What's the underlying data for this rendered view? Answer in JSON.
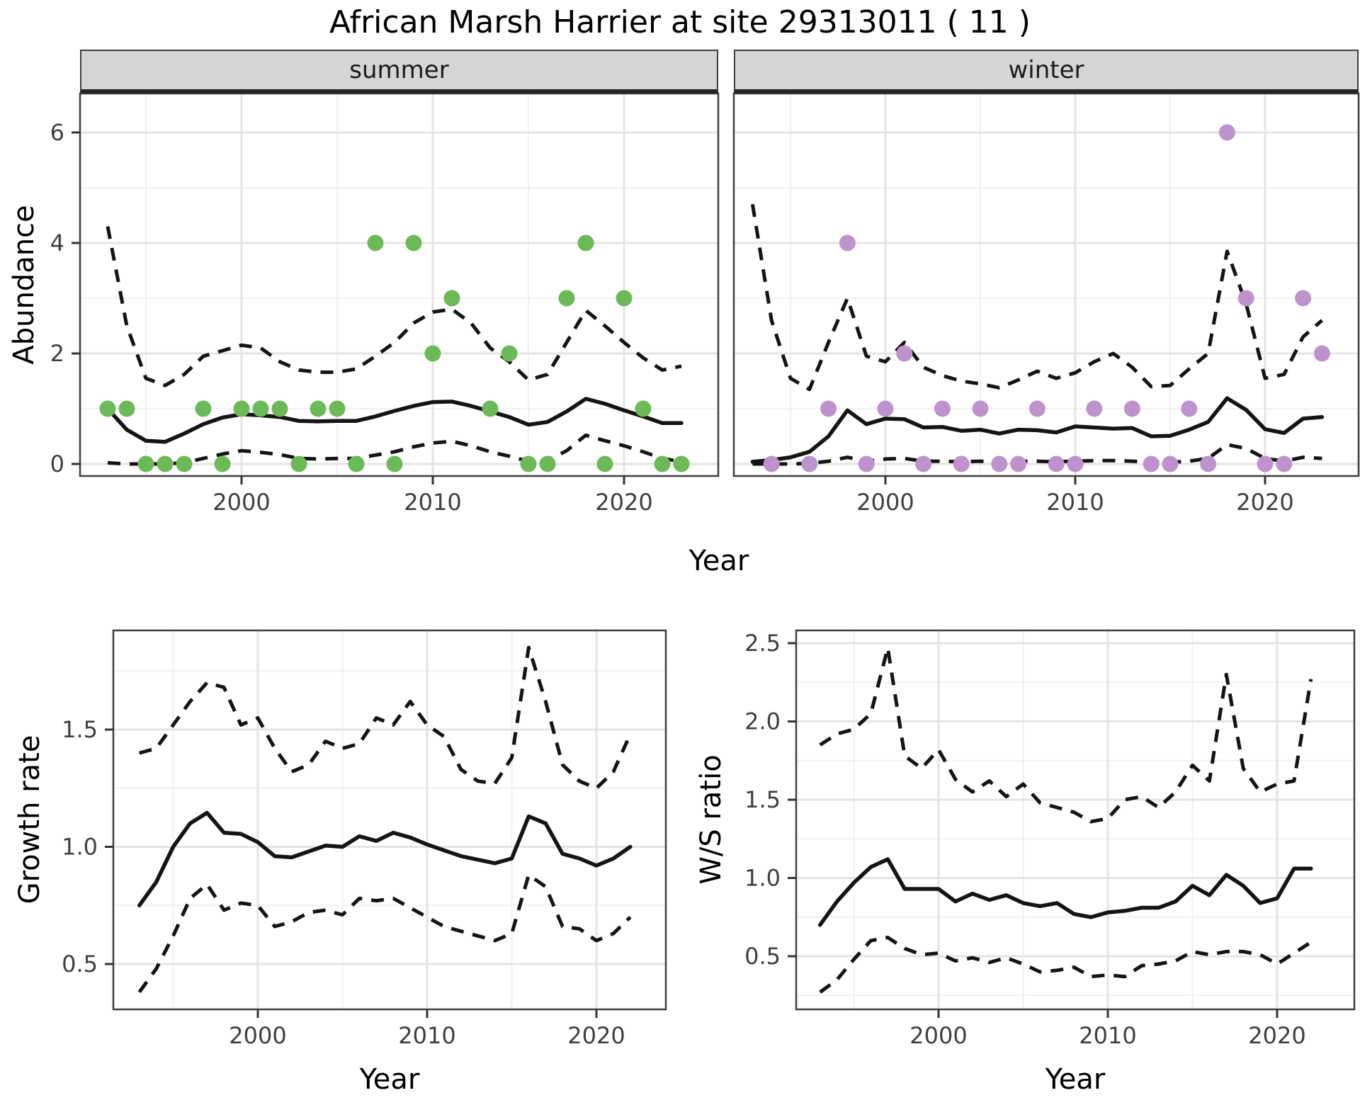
{
  "page": {
    "title": "African Marsh Harrier at site 29313011 ( 11 )"
  },
  "colors": {
    "point_summer": "#6cb958",
    "point_winter": "#be93cd",
    "line": "#141414",
    "grid_major": "#e4e4e4",
    "grid_minor": "#f1f1f1",
    "panel_bg": "#ffffff",
    "panel_border": "#3f3f3f",
    "strip_bg": "#d5d5d5",
    "tick_text": "#3f3f3f"
  },
  "chart_data": [
    {
      "id": "abundance-summer",
      "type": "line",
      "facet_label": "summer",
      "xlabel": "Year",
      "ylabel": "Abundance",
      "xlim": [
        1991.5,
        2024.8
      ],
      "ylim": [
        -0.25,
        6.7
      ],
      "xticks": [
        2000,
        2010,
        2020
      ],
      "xtick_labels": [
        "2000",
        "2010",
        "2020"
      ],
      "xticks_minor": [
        1995,
        2005,
        2015
      ],
      "yticks": [
        0,
        2,
        4,
        6
      ],
      "ytick_labels": [
        "0",
        "2",
        "4",
        "6"
      ],
      "yticks_minor": [
        1,
        3,
        5
      ],
      "grid": true,
      "legend": "none",
      "points": {
        "years": [
          1993,
          1994,
          1995,
          1996,
          1997,
          1998,
          1999,
          2000,
          2001,
          2002,
          2003,
          2004,
          2005,
          2006,
          2007,
          2008,
          2009,
          2010,
          2011,
          2013,
          2014,
          2015,
          2016,
          2017,
          2018,
          2019,
          2020,
          2021,
          2022,
          2023
        ],
        "values": [
          1,
          1,
          0,
          0,
          0,
          1,
          0,
          1,
          1,
          1,
          0,
          1,
          1,
          0,
          4,
          0,
          4,
          2,
          3,
          1,
          2,
          0,
          0,
          3,
          4,
          0,
          3,
          1,
          0,
          0
        ]
      },
      "line_years": [
        1993,
        1994,
        1995,
        1996,
        1997,
        1998,
        1999,
        2000,
        2001,
        2002,
        2003,
        2004,
        2005,
        2006,
        2007,
        2008,
        2009,
        2010,
        2011,
        2012,
        2013,
        2014,
        2015,
        2016,
        2017,
        2018,
        2019,
        2020,
        2021,
        2022,
        2023
      ],
      "fit": [
        1.0,
        0.62,
        0.42,
        0.4,
        0.55,
        0.72,
        0.84,
        0.9,
        0.88,
        0.85,
        0.78,
        0.77,
        0.78,
        0.78,
        0.86,
        0.96,
        1.05,
        1.12,
        1.13,
        1.05,
        0.95,
        0.85,
        0.71,
        0.76,
        0.95,
        1.18,
        1.09,
        0.97,
        0.86,
        0.74,
        0.74
      ],
      "ci_upper": [
        4.3,
        2.5,
        1.55,
        1.42,
        1.62,
        1.95,
        2.05,
        2.15,
        2.1,
        1.85,
        1.7,
        1.66,
        1.66,
        1.72,
        1.95,
        2.2,
        2.55,
        2.75,
        2.8,
        2.55,
        2.1,
        1.85,
        1.52,
        1.62,
        2.2,
        2.78,
        2.5,
        2.2,
        1.92,
        1.7,
        1.77
      ],
      "ci_lower": [
        0.02,
        0.0,
        0.0,
        0.0,
        0.02,
        0.1,
        0.18,
        0.24,
        0.21,
        0.17,
        0.1,
        0.09,
        0.1,
        0.1,
        0.16,
        0.22,
        0.31,
        0.38,
        0.41,
        0.33,
        0.22,
        0.14,
        0.05,
        0.06,
        0.24,
        0.52,
        0.42,
        0.33,
        0.22,
        0.1,
        0.04
      ]
    },
    {
      "id": "abundance-winter",
      "type": "line",
      "facet_label": "winter",
      "xlabel": "Year",
      "ylabel": "Abundance",
      "xlim": [
        1991.8,
        2024.6
      ],
      "ylim": [
        -0.25,
        6.7
      ],
      "xticks": [
        2000,
        2010,
        2020
      ],
      "xtick_labels": [
        "2000",
        "2010",
        "2020"
      ],
      "xticks_minor": [
        1995,
        2005,
        2015
      ],
      "yticks": [
        0,
        2,
        4,
        6
      ],
      "ytick_labels": [
        "0",
        "2",
        "4",
        "6"
      ],
      "yticks_minor": [
        1,
        3,
        5
      ],
      "grid": true,
      "legend": "none",
      "points": {
        "years": [
          1994,
          1996,
          1997,
          1998,
          1999,
          2000,
          2001,
          2002,
          2003,
          2004,
          2005,
          2006,
          2007,
          2008,
          2009,
          2010,
          2011,
          2013,
          2014,
          2015,
          2016,
          2017,
          2018,
          2019,
          2020,
          2021,
          2022,
          2023
        ],
        "values": [
          0,
          0,
          1,
          4,
          0,
          1,
          2,
          0,
          1,
          0,
          1,
          0,
          0,
          1,
          0,
          0,
          1,
          1,
          0,
          0,
          1,
          0,
          6,
          3,
          0,
          0,
          3,
          2
        ]
      },
      "line_years": [
        1993,
        1994,
        1995,
        1996,
        1997,
        1998,
        1999,
        2000,
        2001,
        2002,
        2003,
        2004,
        2005,
        2006,
        2007,
        2008,
        2009,
        2010,
        2011,
        2012,
        2013,
        2014,
        2015,
        2016,
        2017,
        2018,
        2019,
        2020,
        2021,
        2022,
        2023
      ],
      "fit": [
        0.04,
        0.07,
        0.12,
        0.22,
        0.5,
        0.97,
        0.72,
        0.82,
        0.81,
        0.66,
        0.67,
        0.6,
        0.62,
        0.55,
        0.62,
        0.61,
        0.57,
        0.68,
        0.66,
        0.64,
        0.65,
        0.5,
        0.51,
        0.62,
        0.76,
        1.19,
        0.98,
        0.63,
        0.56,
        0.82,
        0.85
      ],
      "ci_upper": [
        4.7,
        2.6,
        1.55,
        1.35,
        2.2,
        3.0,
        1.95,
        1.85,
        2.2,
        1.75,
        1.6,
        1.5,
        1.45,
        1.38,
        1.52,
        1.68,
        1.55,
        1.65,
        1.85,
        2.0,
        1.75,
        1.4,
        1.42,
        1.72,
        2.0,
        3.85,
        2.9,
        1.55,
        1.62,
        2.3,
        2.6
      ],
      "ci_lower": [
        0.0,
        0.0,
        0.0,
        0.01,
        0.05,
        0.12,
        0.05,
        0.09,
        0.1,
        0.05,
        0.05,
        0.04,
        0.05,
        0.03,
        0.05,
        0.05,
        0.04,
        0.05,
        0.06,
        0.06,
        0.05,
        0.03,
        0.03,
        0.05,
        0.1,
        0.35,
        0.28,
        0.1,
        0.05,
        0.12,
        0.1
      ]
    },
    {
      "id": "growth-rate",
      "type": "line",
      "facet_label": "",
      "xlabel": "Year",
      "ylabel": "Growth rate",
      "xlim": [
        1991.5,
        2024.3
      ],
      "ylim": [
        0.31,
        1.92
      ],
      "xticks": [
        2000,
        2010,
        2020
      ],
      "xtick_labels": [
        "2000",
        "2010",
        "2020"
      ],
      "xticks_minor": [
        1995,
        2005,
        2015
      ],
      "yticks": [
        0.5,
        1.0,
        1.5
      ],
      "ytick_labels": [
        "0.5",
        "1.0",
        "1.5"
      ],
      "yticks_minor": [
        0.75,
        1.25,
        1.75
      ],
      "grid": true,
      "legend": "none",
      "points": null,
      "line_years": [
        1993,
        1994,
        1995,
        1996,
        1997,
        1998,
        1999,
        2000,
        2001,
        2002,
        2003,
        2004,
        2005,
        2006,
        2007,
        2008,
        2009,
        2010,
        2011,
        2012,
        2013,
        2014,
        2015,
        2016,
        2017,
        2018,
        2019,
        2020,
        2021,
        2022
      ],
      "fit": [
        0.75,
        0.85,
        1.0,
        1.1,
        1.145,
        1.06,
        1.055,
        1.02,
        0.96,
        0.955,
        0.98,
        1.005,
        1.0,
        1.045,
        1.025,
        1.06,
        1.04,
        1.01,
        0.985,
        0.96,
        0.945,
        0.93,
        0.95,
        1.13,
        1.1,
        0.97,
        0.95,
        0.92,
        0.95,
        1.0
      ],
      "ci_upper": [
        1.4,
        1.42,
        1.52,
        1.62,
        1.7,
        1.68,
        1.52,
        1.55,
        1.42,
        1.32,
        1.35,
        1.45,
        1.42,
        1.44,
        1.55,
        1.52,
        1.62,
        1.52,
        1.47,
        1.33,
        1.28,
        1.27,
        1.38,
        1.85,
        1.62,
        1.35,
        1.28,
        1.25,
        1.32,
        1.48
      ],
      "ci_lower": [
        0.38,
        0.48,
        0.62,
        0.78,
        0.84,
        0.73,
        0.76,
        0.75,
        0.66,
        0.68,
        0.72,
        0.73,
        0.71,
        0.78,
        0.77,
        0.78,
        0.74,
        0.7,
        0.66,
        0.64,
        0.62,
        0.6,
        0.63,
        0.88,
        0.83,
        0.66,
        0.65,
        0.6,
        0.63,
        0.7
      ]
    },
    {
      "id": "ws-ratio",
      "type": "line",
      "facet_label": "",
      "xlabel": "Year",
      "ylabel": "W/S ratio",
      "xlim": [
        1991.5,
        2024.3
      ],
      "ylim": [
        0.16,
        2.58
      ],
      "xticks": [
        2000,
        2010,
        2020
      ],
      "xtick_labels": [
        "2000",
        "2010",
        "2020"
      ],
      "xticks_minor": [
        1995,
        2005,
        2015
      ],
      "yticks": [
        0.5,
        1.0,
        1.5,
        2.0,
        2.5
      ],
      "ytick_labels": [
        "0.5",
        "1.0",
        "1.5",
        "2.0",
        "2.5"
      ],
      "yticks_minor": [
        0.25,
        0.75,
        1.25,
        1.75,
        2.25
      ],
      "grid": true,
      "legend": "none",
      "points": null,
      "line_years": [
        1993,
        1994,
        1995,
        1996,
        1997,
        1998,
        1999,
        2000,
        2001,
        2002,
        2003,
        2004,
        2005,
        2006,
        2007,
        2008,
        2009,
        2010,
        2011,
        2012,
        2013,
        2014,
        2015,
        2016,
        2017,
        2018,
        2019,
        2020,
        2021,
        2022
      ],
      "fit": [
        0.7,
        0.85,
        0.97,
        1.07,
        1.12,
        0.93,
        0.93,
        0.93,
        0.85,
        0.9,
        0.86,
        0.89,
        0.84,
        0.82,
        0.84,
        0.77,
        0.75,
        0.78,
        0.79,
        0.81,
        0.81,
        0.85,
        0.95,
        0.89,
        1.02,
        0.95,
        0.84,
        0.87,
        1.06,
        1.06
      ],
      "ci_upper": [
        1.85,
        1.92,
        1.95,
        2.05,
        2.47,
        1.78,
        1.7,
        1.82,
        1.63,
        1.55,
        1.62,
        1.52,
        1.6,
        1.48,
        1.45,
        1.42,
        1.36,
        1.38,
        1.5,
        1.52,
        1.45,
        1.55,
        1.72,
        1.62,
        2.3,
        1.7,
        1.55,
        1.6,
        1.62,
        2.27
      ],
      "ci_lower": [
        0.27,
        0.35,
        0.48,
        0.6,
        0.62,
        0.55,
        0.51,
        0.52,
        0.47,
        0.49,
        0.46,
        0.49,
        0.45,
        0.4,
        0.41,
        0.43,
        0.37,
        0.38,
        0.37,
        0.44,
        0.45,
        0.47,
        0.53,
        0.51,
        0.53,
        0.53,
        0.51,
        0.45,
        0.52,
        0.59
      ]
    }
  ]
}
